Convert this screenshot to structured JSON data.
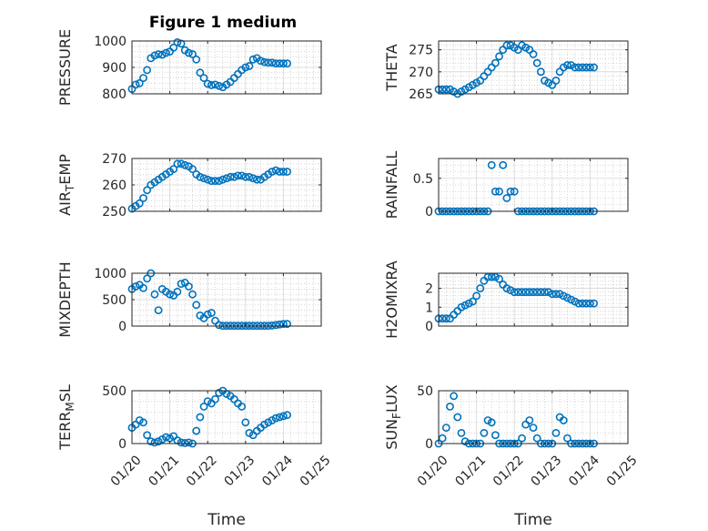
{
  "figure": {
    "title": "Figure 1 medium"
  },
  "chart_data": [
    {
      "type": "scatter",
      "ylabel": "PRESSURE",
      "xlabel": "",
      "ylim": [
        800,
        1000
      ],
      "yticks": [
        800,
        900,
        1000
      ],
      "xticks": [
        "01/20",
        "01/21",
        "01/22",
        "01/23",
        "01/24",
        "01/25"
      ],
      "show_xtick_labels": false,
      "x": [
        0.0,
        0.1,
        0.2,
        0.3,
        0.4,
        0.5,
        0.6,
        0.7,
        0.8,
        0.9,
        1.0,
        1.1,
        1.2,
        1.3,
        1.4,
        1.5,
        1.6,
        1.7,
        1.8,
        1.9,
        2.0,
        2.1,
        2.2,
        2.3,
        2.4,
        2.5,
        2.6,
        2.7,
        2.8,
        2.9,
        3.0,
        3.1,
        3.2,
        3.3,
        3.4,
        3.5,
        3.6,
        3.7,
        3.8,
        3.9,
        4.0,
        4.1
      ],
      "y": [
        818,
        835,
        840,
        860,
        890,
        935,
        945,
        950,
        948,
        955,
        960,
        975,
        995,
        990,
        965,
        955,
        950,
        930,
        880,
        860,
        838,
        833,
        835,
        830,
        825,
        835,
        845,
        860,
        875,
        890,
        900,
        905,
        930,
        935,
        925,
        920,
        918,
        918,
        915,
        915,
        915,
        915
      ]
    },
    {
      "type": "scatter",
      "ylabel": "THETA",
      "xlabel": "",
      "ylim": [
        265,
        277
      ],
      "yticks": [
        265,
        270,
        275
      ],
      "xticks": [
        "01/20",
        "01/21",
        "01/22",
        "01/23",
        "01/24",
        "01/25"
      ],
      "show_xtick_labels": false,
      "x": [
        0.0,
        0.1,
        0.2,
        0.3,
        0.4,
        0.5,
        0.6,
        0.7,
        0.8,
        0.9,
        1.0,
        1.1,
        1.2,
        1.3,
        1.4,
        1.5,
        1.6,
        1.7,
        1.8,
        1.9,
        2.0,
        2.1,
        2.2,
        2.3,
        2.4,
        2.5,
        2.6,
        2.7,
        2.8,
        2.9,
        3.0,
        3.1,
        3.2,
        3.3,
        3.4,
        3.5,
        3.6,
        3.7,
        3.8,
        3.9,
        4.0,
        4.1
      ],
      "y": [
        266,
        266,
        266,
        266,
        265.5,
        265,
        265.5,
        266,
        266.5,
        267,
        267.5,
        268,
        269,
        270,
        271,
        272,
        273.5,
        275,
        276,
        276,
        275.5,
        275,
        276,
        275.5,
        275,
        274,
        272,
        270,
        268,
        267.5,
        267,
        268,
        270,
        271,
        271.5,
        271.5,
        271,
        271,
        271,
        271,
        271,
        271
      ]
    },
    {
      "type": "scatter",
      "ylabel": "AIR_TEMP",
      "xlabel": "",
      "ylim": [
        250,
        270
      ],
      "yticks": [
        250,
        260,
        270
      ],
      "xticks": [
        "01/20",
        "01/21",
        "01/22",
        "01/23",
        "01/24",
        "01/25"
      ],
      "show_xtick_labels": false,
      "x": [
        0.0,
        0.1,
        0.2,
        0.3,
        0.4,
        0.5,
        0.6,
        0.7,
        0.8,
        0.9,
        1.0,
        1.1,
        1.2,
        1.3,
        1.4,
        1.5,
        1.6,
        1.7,
        1.8,
        1.9,
        2.0,
        2.1,
        2.2,
        2.3,
        2.4,
        2.5,
        2.6,
        2.7,
        2.8,
        2.9,
        3.0,
        3.1,
        3.2,
        3.3,
        3.4,
        3.5,
        3.6,
        3.7,
        3.8,
        3.9,
        4.0,
        4.1
      ],
      "y": [
        251,
        252,
        253,
        255,
        258,
        260,
        261,
        262,
        263,
        264,
        265,
        266,
        268,
        268,
        267.5,
        267,
        266,
        264,
        263,
        262.5,
        262,
        261.5,
        261.5,
        261.5,
        262,
        262.5,
        263,
        263,
        263.5,
        263.5,
        263,
        263,
        262.5,
        262,
        262,
        263,
        264,
        265,
        265.5,
        265,
        265,
        265
      ]
    },
    {
      "type": "scatter",
      "ylabel": "RAINFALL",
      "xlabel": "",
      "ylim": [
        0,
        0.8
      ],
      "yticks": [
        0,
        0.5
      ],
      "xticks": [
        "01/20",
        "01/21",
        "01/22",
        "01/23",
        "01/24",
        "01/25"
      ],
      "show_xtick_labels": false,
      "x": [
        0.0,
        0.1,
        0.2,
        0.3,
        0.4,
        0.5,
        0.6,
        0.7,
        0.8,
        0.9,
        1.0,
        1.1,
        1.2,
        1.3,
        1.4,
        1.5,
        1.6,
        1.7,
        1.8,
        1.9,
        2.0,
        2.1,
        2.2,
        2.3,
        2.4,
        2.5,
        2.6,
        2.7,
        2.8,
        2.9,
        3.0,
        3.1,
        3.2,
        3.3,
        3.4,
        3.5,
        3.6,
        3.7,
        3.8,
        3.9,
        4.0,
        4.1
      ],
      "y": [
        0,
        0,
        0,
        0,
        0,
        0,
        0,
        0,
        0,
        0,
        0,
        0,
        0,
        0,
        0.7,
        0.3,
        0.3,
        0.7,
        0.2,
        0.3,
        0.3,
        0,
        0,
        0,
        0,
        0,
        0,
        0,
        0,
        0,
        0,
        0,
        0,
        0,
        0,
        0,
        0,
        0,
        0,
        0,
        0,
        0
      ]
    },
    {
      "type": "scatter",
      "ylabel": "MIXDEPTH",
      "xlabel": "",
      "ylim": [
        0,
        1000
      ],
      "yticks": [
        0,
        500,
        1000
      ],
      "xticks": [
        "01/20",
        "01/21",
        "01/22",
        "01/23",
        "01/24",
        "01/25"
      ],
      "show_xtick_labels": false,
      "x": [
        0.0,
        0.1,
        0.2,
        0.3,
        0.4,
        0.5,
        0.6,
        0.7,
        0.8,
        0.9,
        1.0,
        1.1,
        1.2,
        1.3,
        1.4,
        1.5,
        1.6,
        1.7,
        1.8,
        1.9,
        2.0,
        2.1,
        2.2,
        2.3,
        2.4,
        2.5,
        2.6,
        2.7,
        2.8,
        2.9,
        3.0,
        3.1,
        3.2,
        3.3,
        3.4,
        3.5,
        3.6,
        3.7,
        3.8,
        3.9,
        4.0,
        4.1
      ],
      "y": [
        700,
        750,
        780,
        720,
        900,
        1000,
        600,
        300,
        700,
        650,
        600,
        580,
        650,
        800,
        820,
        750,
        600,
        400,
        200,
        150,
        220,
        250,
        100,
        20,
        5,
        5,
        5,
        5,
        5,
        5,
        5,
        5,
        5,
        5,
        5,
        5,
        5,
        10,
        20,
        30,
        40,
        40
      ]
    },
    {
      "type": "scatter",
      "ylabel": "H2OMIXRA",
      "xlabel": "",
      "ylim": [
        0,
        2.8
      ],
      "yticks": [
        0,
        1,
        2
      ],
      "xticks": [
        "01/20",
        "01/21",
        "01/22",
        "01/23",
        "01/24",
        "01/25"
      ],
      "show_xtick_labels": false,
      "x": [
        0.0,
        0.1,
        0.2,
        0.3,
        0.4,
        0.5,
        0.6,
        0.7,
        0.8,
        0.9,
        1.0,
        1.1,
        1.2,
        1.3,
        1.4,
        1.5,
        1.6,
        1.7,
        1.8,
        1.9,
        2.0,
        2.1,
        2.2,
        2.3,
        2.4,
        2.5,
        2.6,
        2.7,
        2.8,
        2.9,
        3.0,
        3.1,
        3.2,
        3.3,
        3.4,
        3.5,
        3.6,
        3.7,
        3.8,
        3.9,
        4.0,
        4.1
      ],
      "y": [
        0.4,
        0.4,
        0.4,
        0.4,
        0.6,
        0.8,
        1.0,
        1.1,
        1.2,
        1.3,
        1.6,
        2.0,
        2.4,
        2.6,
        2.6,
        2.6,
        2.5,
        2.2,
        2.0,
        1.9,
        1.8,
        1.8,
        1.8,
        1.8,
        1.8,
        1.8,
        1.8,
        1.8,
        1.8,
        1.8,
        1.7,
        1.7,
        1.7,
        1.6,
        1.5,
        1.4,
        1.3,
        1.2,
        1.2,
        1.2,
        1.2,
        1.2
      ]
    },
    {
      "type": "scatter",
      "ylabel": "TERR_MSL",
      "xlabel": "Time",
      "ylim": [
        0,
        500
      ],
      "yticks": [
        0,
        500
      ],
      "xticks": [
        "01/20",
        "01/21",
        "01/22",
        "01/23",
        "01/24",
        "01/25"
      ],
      "show_xtick_labels": true,
      "x": [
        0.0,
        0.1,
        0.2,
        0.3,
        0.4,
        0.5,
        0.6,
        0.7,
        0.8,
        0.9,
        1.0,
        1.1,
        1.2,
        1.3,
        1.4,
        1.5,
        1.6,
        1.7,
        1.8,
        1.9,
        2.0,
        2.1,
        2.2,
        2.3,
        2.4,
        2.5,
        2.6,
        2.7,
        2.8,
        2.9,
        3.0,
        3.1,
        3.2,
        3.3,
        3.4,
        3.5,
        3.6,
        3.7,
        3.8,
        3.9,
        4.0,
        4.1
      ],
      "y": [
        150,
        180,
        220,
        200,
        80,
        20,
        10,
        20,
        40,
        60,
        50,
        70,
        30,
        10,
        5,
        10,
        0,
        120,
        250,
        350,
        400,
        380,
        420,
        480,
        500,
        470,
        450,
        420,
        380,
        350,
        200,
        100,
        80,
        120,
        150,
        180,
        200,
        220,
        240,
        250,
        260,
        270
      ]
    },
    {
      "type": "scatter",
      "ylabel": "SUN_FLUX",
      "xlabel": "Time",
      "ylim": [
        0,
        50
      ],
      "yticks": [
        0,
        50
      ],
      "xticks": [
        "01/20",
        "01/21",
        "01/22",
        "01/23",
        "01/24",
        "01/25"
      ],
      "show_xtick_labels": true,
      "x": [
        0.0,
        0.1,
        0.2,
        0.3,
        0.4,
        0.5,
        0.6,
        0.7,
        0.8,
        0.9,
        1.0,
        1.1,
        1.2,
        1.3,
        1.4,
        1.5,
        1.6,
        1.7,
        1.8,
        1.9,
        2.0,
        2.1,
        2.2,
        2.3,
        2.4,
        2.5,
        2.6,
        2.7,
        2.8,
        2.9,
        3.0,
        3.1,
        3.2,
        3.3,
        3.4,
        3.5,
        3.6,
        3.7,
        3.8,
        3.9,
        4.0,
        4.1
      ],
      "y": [
        0,
        5,
        15,
        35,
        45,
        25,
        10,
        2,
        0,
        0,
        0,
        0,
        10,
        22,
        20,
        8,
        0,
        0,
        0,
        0,
        0,
        0,
        5,
        18,
        22,
        15,
        5,
        0,
        0,
        0,
        0,
        10,
        25,
        22,
        5,
        0,
        0,
        0,
        0,
        0,
        0,
        0
      ]
    }
  ]
}
